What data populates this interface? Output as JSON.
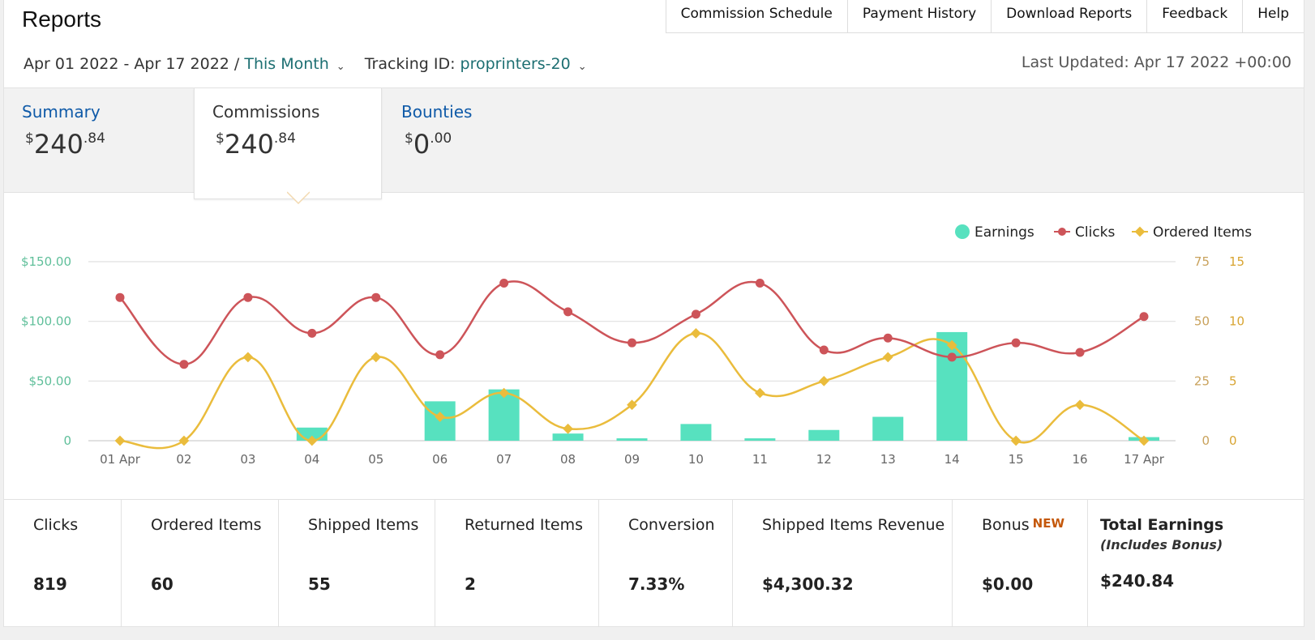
{
  "header": {
    "title": "Reports"
  },
  "topnav": [
    "Commission Schedule",
    "Payment History",
    "Download Reports",
    "Feedback",
    "Help"
  ],
  "filters": {
    "date_range": "Apr 01 2022 - Apr 17 2022 / ",
    "period": "This Month",
    "tracking_label": "Tracking ID: ",
    "tracking_id": "proprinters-20"
  },
  "last_updated": "Last Updated: Apr 17 2022 +00:00",
  "tabs": [
    {
      "label": "Summary",
      "symbol": "$",
      "dollars": "240",
      "cents": ".84"
    },
    {
      "label": "Commissions",
      "symbol": "$",
      "dollars": "240",
      "cents": ".84"
    },
    {
      "label": "Bounties",
      "symbol": "$",
      "dollars": "0",
      "cents": ".00"
    }
  ],
  "stats": [
    {
      "label": "Clicks",
      "value": "819"
    },
    {
      "label": "Ordered Items",
      "value": "60"
    },
    {
      "label": "Shipped Items",
      "value": "55"
    },
    {
      "label": "Returned Items",
      "value": "2"
    },
    {
      "label": "Conversion",
      "value": "7.33%"
    },
    {
      "label": "Shipped Items Revenue",
      "value": "$4,300.32"
    },
    {
      "label": "Bonus",
      "badge": "NEW",
      "value": "$0.00"
    },
    {
      "label": "Total Earnings",
      "sublabel": "(Includes Bonus)",
      "value": "$240.84"
    }
  ],
  "colors": {
    "earnings": "#57e1bf",
    "clicks": "#cd5459",
    "ordered": "#eabc3c",
    "link": "#1d6f72",
    "tab_link": "#0f5aa8",
    "badge": "#c4580a"
  },
  "chart_data": {
    "type": "bar",
    "categories": [
      "01 Apr",
      "02",
      "03",
      "04",
      "05",
      "06",
      "07",
      "08",
      "09",
      "10",
      "11",
      "12",
      "13",
      "14",
      "15",
      "16",
      "17 Apr"
    ],
    "legend": [
      "Earnings",
      "Clicks",
      "Ordered Items"
    ],
    "legend_position": "top-right",
    "series": [
      {
        "name": "Earnings",
        "type": "bar",
        "axis": "left",
        "values": [
          0,
          0,
          0,
          11,
          0,
          33,
          43,
          6,
          2,
          14,
          2,
          9,
          20,
          91,
          0,
          0,
          3
        ]
      },
      {
        "name": "Clicks",
        "type": "line",
        "axis": "right",
        "values": [
          60,
          32,
          60,
          45,
          60,
          36,
          66,
          54,
          41,
          53,
          66,
          38,
          43,
          35,
          41,
          37,
          52
        ]
      },
      {
        "name": "Ordered Items",
        "type": "line",
        "axis": "right2",
        "values": [
          0,
          0,
          7,
          0,
          7,
          2,
          4,
          1,
          3,
          9,
          4,
          5,
          7,
          8,
          0,
          3,
          0
        ]
      }
    ],
    "y_left": {
      "ticks": [
        "0",
        "$50.00",
        "$100.00",
        "$150.00"
      ],
      "range": [
        0,
        150
      ]
    },
    "y_right": {
      "ticks": [
        "0",
        "25",
        "50",
        "75"
      ],
      "range": [
        0,
        75
      ]
    },
    "y_right2": {
      "ticks": [
        "0",
        "5",
        "10",
        "15"
      ],
      "range": [
        0,
        15
      ]
    },
    "grid": true
  }
}
